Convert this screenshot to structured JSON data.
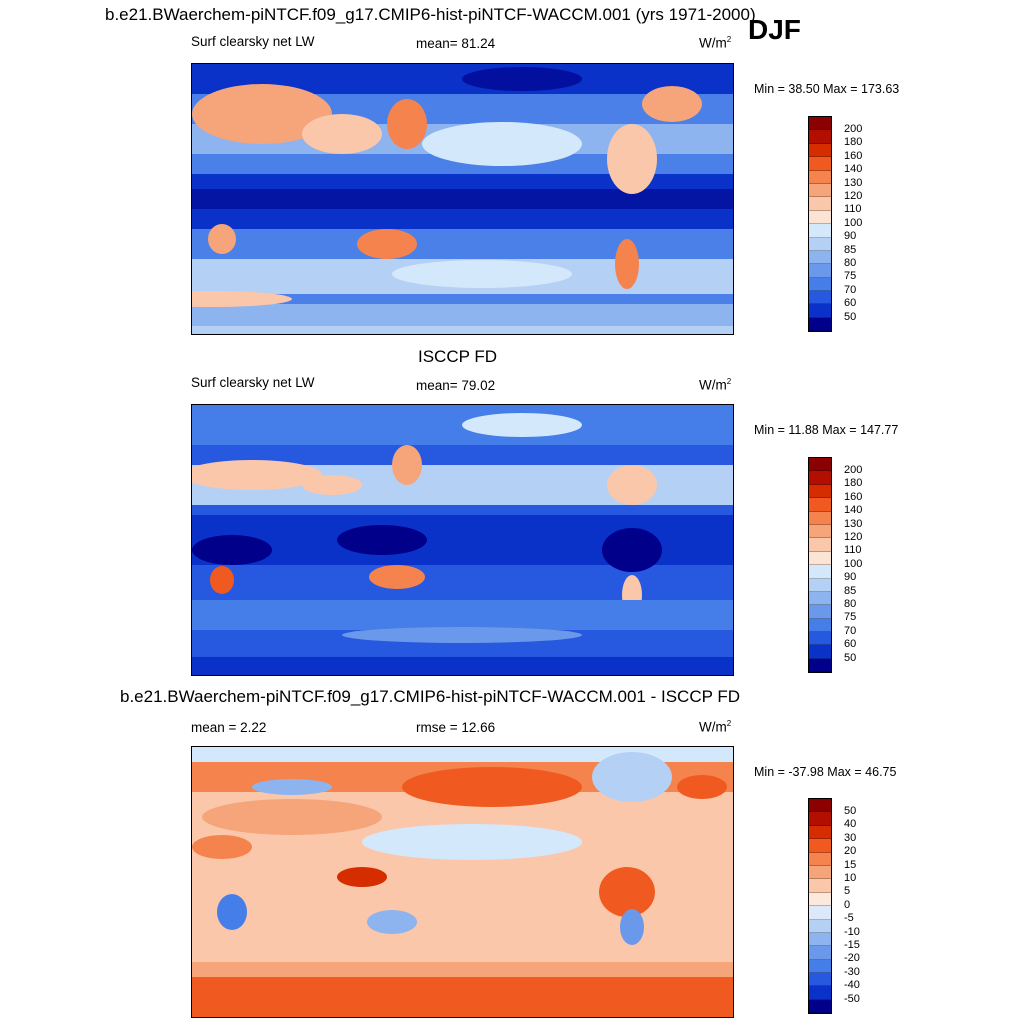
{
  "header": {
    "title": "b.e21.BWaerchem-piNTCF.f09_g17.CMIP6-hist-piNTCF-WACCM.001 (yrs 1971-2000)",
    "season": "DJF"
  },
  "panels": [
    {
      "title": "",
      "left_label": "Surf clearsky net LW",
      "middle_label": "mean=  81.24",
      "units": "W/m",
      "units_sup": "2",
      "minmax": "Min =  38.50 Max = 173.63",
      "colorbar": {
        "levels": [
          "200",
          "180",
          "160",
          "140",
          "130",
          "120",
          "110",
          "100",
          "90",
          "85",
          "80",
          "75",
          "70",
          "60",
          "50"
        ],
        "colors": [
          "#8b0000",
          "#b30f00",
          "#d62d00",
          "#f05a20",
          "#f5834e",
          "#f6a47a",
          "#fbc7aa",
          "#fce4d4",
          "#d4e8fb",
          "#b4d0f5",
          "#8eb4ef",
          "#6a98ea",
          "#457ee8",
          "#2658e0",
          "#0a32c8",
          "#00008b"
        ]
      },
      "map_data": {
        "field": "Surf clearsky net LW",
        "range": [
          38.5,
          173.63
        ],
        "mean": 81.24
      }
    },
    {
      "title": "ISCCP FD",
      "left_label": "Surf clearsky net LW",
      "middle_label": "mean=  79.02",
      "units": "W/m",
      "units_sup": "2",
      "minmax": "Min =  11.88 Max = 147.77",
      "colorbar": {
        "levels": [
          "200",
          "180",
          "160",
          "140",
          "130",
          "120",
          "110",
          "100",
          "90",
          "85",
          "80",
          "75",
          "70",
          "60",
          "50"
        ],
        "colors": [
          "#8b0000",
          "#b30f00",
          "#d62d00",
          "#f05a20",
          "#f5834e",
          "#f6a47a",
          "#fbc7aa",
          "#fce4d4",
          "#d4e8fb",
          "#b4d0f5",
          "#8eb4ef",
          "#6a98ea",
          "#457ee8",
          "#2658e0",
          "#0a32c8",
          "#00008b"
        ]
      },
      "map_data": {
        "field": "Surf clearsky net LW",
        "range": [
          11.88,
          147.77
        ],
        "mean": 79.02
      }
    },
    {
      "title": "b.e21.BWaerchem-piNTCF.f09_g17.CMIP6-hist-piNTCF-WACCM.001 - ISCCP FD",
      "left_label": "mean =   2.22",
      "middle_label": "rmse =  12.66",
      "units": "W/m",
      "units_sup": "2",
      "minmax": "Min = -37.98 Max =  46.75",
      "colorbar": {
        "levels": [
          "50",
          "40",
          "30",
          "20",
          "15",
          "10",
          "5",
          "0",
          "-5",
          "-10",
          "-15",
          "-20",
          "-30",
          "-40",
          "-50"
        ],
        "colors": [
          "#8b0000",
          "#b30f00",
          "#d62d00",
          "#f05a20",
          "#f5834e",
          "#f6a47a",
          "#fbc7aa",
          "#fde9dc",
          "#dbe9fb",
          "#b4d0f5",
          "#8eb4ef",
          "#6a98ea",
          "#457ee8",
          "#2658e0",
          "#0a32c8",
          "#00008b"
        ]
      },
      "map_data": {
        "field": "difference",
        "range": [
          -37.98,
          46.75
        ],
        "mean": 2.22,
        "rmse": 12.66
      }
    }
  ]
}
